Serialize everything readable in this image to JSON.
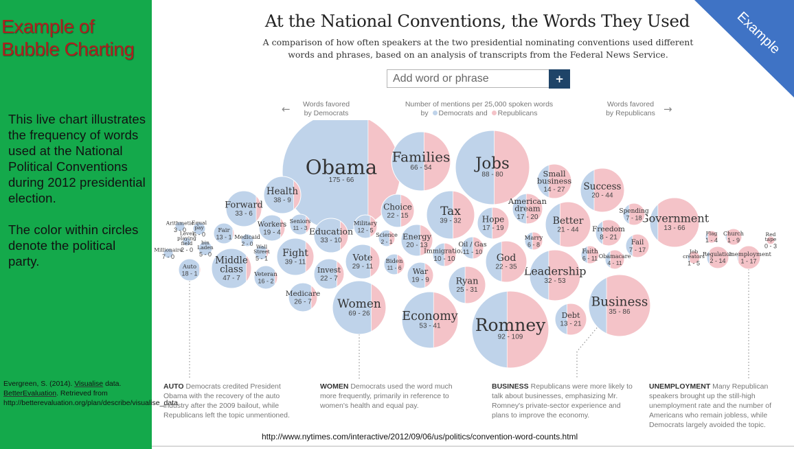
{
  "sidebar": {
    "title_line1": "Example of",
    "title_line2": "Bubble Charting",
    "description": "This live chart illustrates the frequency of words used at the National Political Conventions during 2012 presidential election.\n\nThe color within circles denote the political party.",
    "citation_part1": "Evergreen, S. (2014). ",
    "citation_link1": "Visualise",
    "citation_part2": " data. ",
    "citation_link2": "BetterEvaluation",
    "citation_part3": ". Retrieved from http://betterevaluation.org/plan/describe/visualise_data"
  },
  "banner": {
    "label": "Example",
    "color": "#3f73c5"
  },
  "colors": {
    "dem": "#bfd3ea",
    "rep": "#f4c3c8",
    "sidebar": "#14a94b",
    "button": "#1f4468"
  },
  "search": {
    "placeholder": "Add word or phrase",
    "button_label": "+"
  },
  "header": {
    "dem_favored_line1": "Words favored",
    "dem_favored_line2": "by Democrats",
    "rep_favored_line1": "Words favored",
    "rep_favored_line2": "by Republicans",
    "legend_line1": "Number of mentions per 25,000 spoken words",
    "legend_by": "by",
    "legend_dem": "Democrats",
    "legend_and": "and",
    "legend_rep": "Republicans",
    "left_arrow": "←",
    "right_arrow": "→"
  },
  "annotations": [
    {
      "keyword": "AUTO",
      "text": " Democrats credited President Obama with the recovery of the auto industry after the 2009 bailout, while Republicans left the topic unmentioned."
    },
    {
      "keyword": "WOMEN",
      "text": " Democrats used the word much more frequently, primarily in reference to women's health and equal pay."
    },
    {
      "keyword": "BUSINESS",
      "text": " Republicans were more likely to talk about businesses, emphasizing Mr. Romney's private-sector experience and plans to improve the economy."
    },
    {
      "keyword": "UNEMPLOYMENT",
      "text": " Many Republican speakers brought up the still-high unemployment rate and the number of Americans who remain jobless, while Democrats largely avoided the topic."
    }
  ],
  "source_url": "http://www.nytimes.com/interactive/2012/09/06/us/politics/convention-word-counts.html",
  "chart_data": {
    "type": "bubble",
    "title": "At the National Conventions, the Words They Used",
    "subtitle_line1": "A comparison of how often speakers at the two presidential nominating conventions used different",
    "subtitle_line2": "words and phrases, based on an analysis of transcripts from the Federal News Service.",
    "series": [
      "Democrats",
      "Republicans"
    ],
    "words": [
      {
        "word": "Obama",
        "dem": 175,
        "rep": 66,
        "label": "175 - 66"
      },
      {
        "word": "Families",
        "dem": 66,
        "rep": 54,
        "label": "66 - 54"
      },
      {
        "word": "Jobs",
        "dem": 88,
        "rep": 80,
        "label": "88 - 80"
      },
      {
        "word": "Romney",
        "dem": 92,
        "rep": 109,
        "label": "92 - 109"
      },
      {
        "word": "Business",
        "dem": 35,
        "rep": 86,
        "label": "35 - 86"
      },
      {
        "word": "Economy",
        "dem": 53,
        "rep": 41,
        "label": "53 - 41"
      },
      {
        "word": "Women",
        "dem": 69,
        "rep": 26,
        "label": "69 - 26"
      },
      {
        "word": "Government",
        "dem": 13,
        "rep": 66,
        "label": "13 - 66"
      },
      {
        "word": "Leadership",
        "dem": 32,
        "rep": 53,
        "label": "32 - 53"
      },
      {
        "word": "Tax",
        "dem": 39,
        "rep": 32,
        "label": "39 - 32"
      },
      {
        "word": "Middle class",
        "dem": 47,
        "rep": 7,
        "label": "47 - 7"
      },
      {
        "word": "Health",
        "dem": 38,
        "rep": 9,
        "label": "38 - 9"
      },
      {
        "word": "Forward",
        "dem": 33,
        "rep": 6,
        "label": "33 - 6"
      },
      {
        "word": "Choice",
        "dem": 22,
        "rep": 15,
        "label": "22 - 15"
      },
      {
        "word": "Success",
        "dem": 20,
        "rep": 44,
        "label": "20 - 44"
      },
      {
        "word": "Better",
        "dem": 21,
        "rep": 44,
        "label": "21 - 44"
      },
      {
        "word": "American dream",
        "dem": 17,
        "rep": 20,
        "label": "17 - 20"
      },
      {
        "word": "Small business",
        "dem": 14,
        "rep": 27,
        "label": "14 - 27"
      },
      {
        "word": "Hope",
        "dem": 17,
        "rep": 19,
        "label": "17 - 19"
      },
      {
        "word": "God",
        "dem": 22,
        "rep": 35,
        "label": "22 - 35"
      },
      {
        "word": "Ryan",
        "dem": 25,
        "rep": 31,
        "label": "25 - 31"
      },
      {
        "word": "Education",
        "dem": 33,
        "rep": 10,
        "label": "33 - 10"
      },
      {
        "word": "Fight",
        "dem": 39,
        "rep": 11,
        "label": "39 - 11"
      },
      {
        "word": "Vote",
        "dem": 29,
        "rep": 11,
        "label": "29 - 11"
      },
      {
        "word": "Invest",
        "dem": 22,
        "rep": 7,
        "label": "22 - 7"
      },
      {
        "word": "Medicare",
        "dem": 26,
        "rep": 7,
        "label": "26 - 7"
      },
      {
        "word": "Energy",
        "dem": 20,
        "rep": 13,
        "label": "20 - 13"
      },
      {
        "word": "War",
        "dem": 19,
        "rep": 9,
        "label": "19 - 9"
      },
      {
        "word": "Immigration",
        "dem": 10,
        "rep": 10,
        "label": "10 - 10"
      },
      {
        "word": "Oil / Gas",
        "dem": 11,
        "rep": 10,
        "label": "11 - 10"
      },
      {
        "word": "Debt",
        "dem": 13,
        "rep": 21,
        "label": "13 - 21"
      },
      {
        "word": "Freedom",
        "dem": 8,
        "rep": 21,
        "label": "8 - 21"
      },
      {
        "word": "Spending",
        "dem": 7,
        "rep": 18,
        "label": "7 - 18"
      },
      {
        "word": "Fail",
        "dem": 7,
        "rep": 17,
        "label": "7 - 17"
      },
      {
        "word": "Faith",
        "dem": 6,
        "rep": 11,
        "label": "6 - 11"
      },
      {
        "word": "Obamacare",
        "dem": 4,
        "rep": 11,
        "label": "4 - 11"
      },
      {
        "word": "Marry",
        "dem": 6,
        "rep": 8,
        "label": "6 - 8"
      },
      {
        "word": "Workers",
        "dem": 19,
        "rep": 4,
        "label": "19 - 4"
      },
      {
        "word": "Seniors",
        "dem": 11,
        "rep": 3,
        "label": "11 - 3"
      },
      {
        "word": "Military",
        "dem": 12,
        "rep": 5,
        "label": "12 - 5"
      },
      {
        "word": "Biden",
        "dem": 11,
        "rep": 6,
        "label": "11 - 6"
      },
      {
        "word": "Science",
        "dem": 2,
        "rep": 1,
        "label": "2 - 1"
      },
      {
        "word": "Veteran",
        "dem": 16,
        "rep": 2,
        "label": "16 - 2"
      },
      {
        "word": "Auto",
        "dem": 18,
        "rep": 1,
        "label": "18 - 1"
      },
      {
        "word": "Fair",
        "dem": 13,
        "rep": 1,
        "label": "13 - 1"
      },
      {
        "word": "Medicaid",
        "dem": 2,
        "rep": 0,
        "label": "2 - 0"
      },
      {
        "word": "Wall Street",
        "dem": 5,
        "rep": 1,
        "label": "5 - 1"
      },
      {
        "word": "bin Laden",
        "dem": 5,
        "rep": 0,
        "label": "5 - 0"
      },
      {
        "word": "Equal pay",
        "dem": 6,
        "rep": 0,
        "label": "6 - 0"
      },
      {
        "word": "Arithmetic",
        "dem": 3,
        "rep": 0,
        "label": "3 - 0"
      },
      {
        "word": "Level playing field",
        "dem": 2,
        "rep": 0,
        "label": "2 - 0"
      },
      {
        "word": "Millionaire",
        "dem": 7,
        "rep": 0,
        "label": "7 - 0"
      },
      {
        "word": "Unemployment",
        "dem": 1,
        "rep": 17,
        "label": "1 - 17"
      },
      {
        "word": "Regulation",
        "dem": 2,
        "rep": 14,
        "label": "2 - 14"
      },
      {
        "word": "Job creators",
        "dem": 1,
        "rep": 5,
        "label": "1 - 5"
      },
      {
        "word": "Church",
        "dem": 1,
        "rep": 9,
        "label": "1 - 9"
      },
      {
        "word": "Flag",
        "dem": 1,
        "rep": 4,
        "label": "1 - 4"
      },
      {
        "word": "Red tape",
        "dem": 0,
        "rep": 3,
        "label": "0 - 3"
      }
    ]
  }
}
